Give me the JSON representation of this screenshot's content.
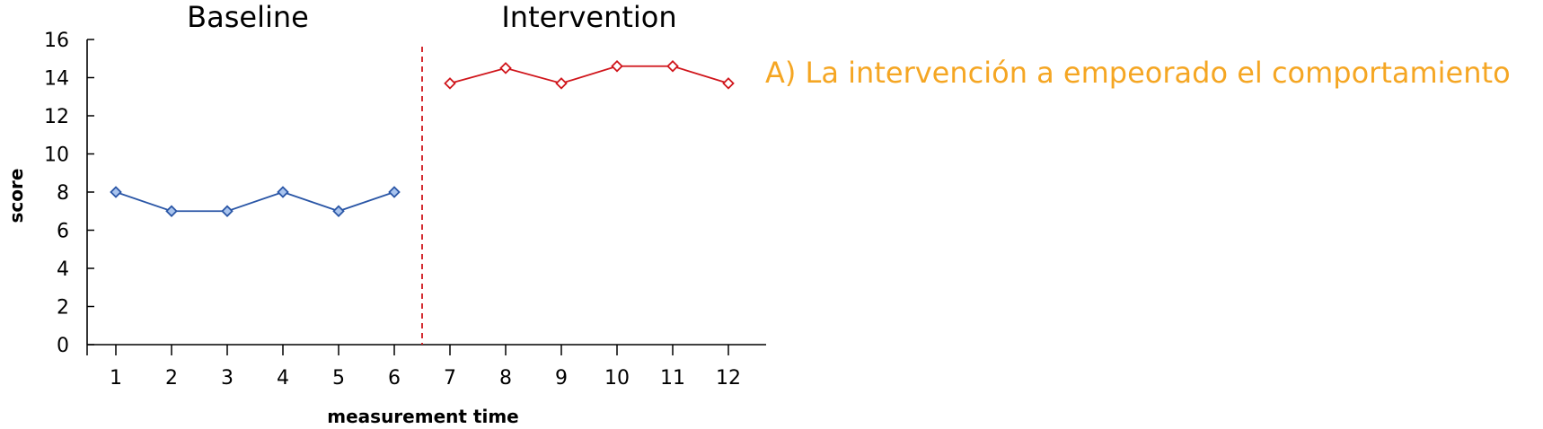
{
  "chart_data": {
    "type": "line",
    "title": "",
    "xlabel": "measurement time",
    "ylabel": "score",
    "ylim": [
      0,
      16
    ],
    "xlim": [
      0.5,
      12.5
    ],
    "yticks": [
      0,
      2,
      4,
      6,
      8,
      10,
      12,
      14,
      16
    ],
    "xticks": [
      1,
      2,
      3,
      4,
      5,
      6,
      7,
      8,
      9,
      10,
      11,
      12
    ],
    "grid": false,
    "phase_change_at": 6.5,
    "phases": [
      {
        "label": "Baseline",
        "x_start": 0.5,
        "x_end": 6.5
      },
      {
        "label": "Intervention",
        "x_start": 6.5,
        "x_end": 12.5
      }
    ],
    "series": [
      {
        "x": [
          1,
          2,
          3,
          4,
          5,
          6
        ],
        "values": [
          8,
          7,
          7,
          8,
          7,
          8
        ],
        "color": "#2a56a6",
        "marker_fill": "#a9c4ee"
      },
      {
        "x": [
          7,
          8,
          9,
          10,
          11,
          12
        ],
        "values": [
          13.7,
          14.5,
          13.7,
          14.6,
          14.6,
          13.7
        ],
        "color": "#d0151b",
        "marker_fill": "#ffffff"
      }
    ],
    "annotation": {
      "text": "A) La intervención a empeorado el comportamiento",
      "color": "#f5a623"
    },
    "phase_line_color": "#d0151b"
  }
}
